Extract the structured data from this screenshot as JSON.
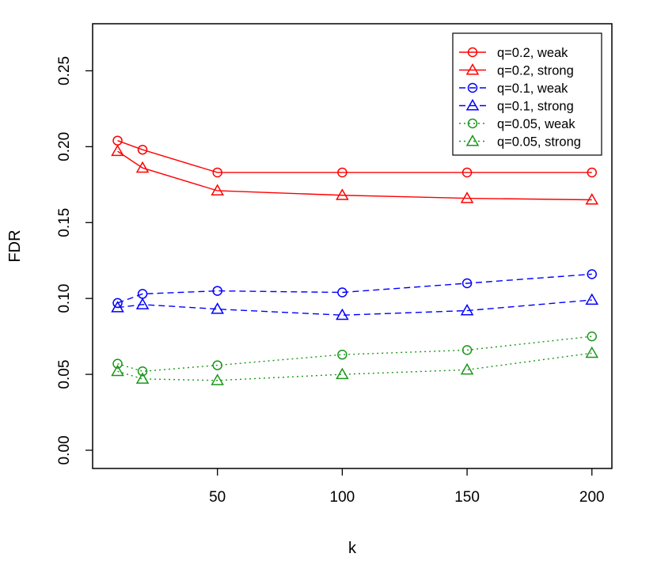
{
  "chart_data": {
    "type": "line",
    "title": "",
    "xlabel": "k",
    "ylabel": "FDR",
    "xlim": [
      0,
      208
    ],
    "ylim": [
      -0.012,
      0.281
    ],
    "xticks": [
      50,
      100,
      150,
      200
    ],
    "xtick_labels": [
      "50",
      "100",
      "150",
      "200"
    ],
    "yticks": [
      0.0,
      0.05,
      0.1,
      0.15,
      0.2,
      0.25
    ],
    "ytick_labels": [
      "0.00",
      "0.05",
      "0.10",
      "0.15",
      "0.20",
      "0.25"
    ],
    "grid": false,
    "legend_position": "top-right",
    "x": [
      10,
      20,
      50,
      100,
      150,
      200
    ],
    "series": [
      {
        "name": "q=0.2, weak",
        "color": "#ff0000",
        "dash": "solid",
        "marker": "circle",
        "values": [
          0.204,
          0.198,
          0.183,
          0.183,
          0.183,
          0.183
        ]
      },
      {
        "name": "q=0.2, strong",
        "color": "#ff0000",
        "dash": "solid",
        "marker": "triangle",
        "values": [
          0.197,
          0.186,
          0.171,
          0.168,
          0.166,
          0.165
        ]
      },
      {
        "name": "q=0.1, weak",
        "color": "#0000ff",
        "dash": "dashed",
        "marker": "circle",
        "values": [
          0.097,
          0.103,
          0.105,
          0.104,
          0.11,
          0.116
        ]
      },
      {
        "name": "q=0.1, strong",
        "color": "#0000ff",
        "dash": "dashed",
        "marker": "triangle",
        "values": [
          0.094,
          0.096,
          0.093,
          0.089,
          0.092,
          0.099
        ]
      },
      {
        "name": "q=0.05, weak",
        "color": "#1a961a",
        "dash": "dotted",
        "marker": "circle",
        "values": [
          0.057,
          0.052,
          0.056,
          0.063,
          0.066,
          0.075
        ]
      },
      {
        "name": "q=0.05, strong",
        "color": "#1a961a",
        "dash": "dotted",
        "marker": "triangle",
        "values": [
          0.052,
          0.047,
          0.046,
          0.05,
          0.053,
          0.064
        ]
      }
    ]
  }
}
